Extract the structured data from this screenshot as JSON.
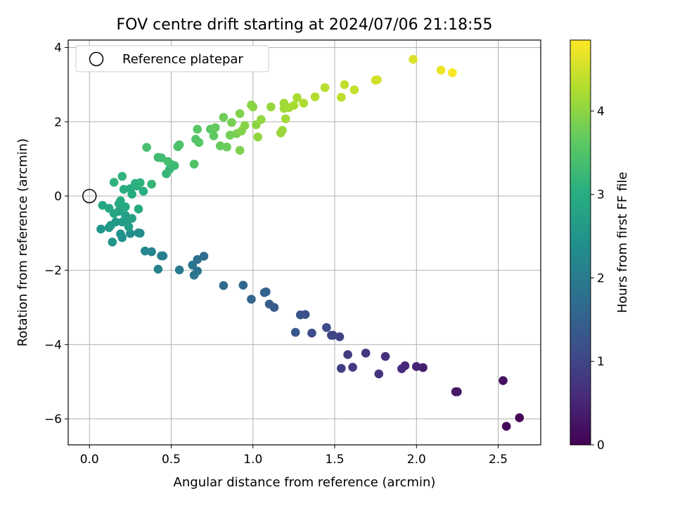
{
  "chart_data": {
    "type": "scatter",
    "title": "FOV centre drift starting at 2024/07/06 21:18:55",
    "xlabel": "Angular distance from reference (arcmin)",
    "ylabel": "Rotation from reference (arcmin)",
    "xlim": [
      -0.13,
      2.76
    ],
    "ylim": [
      -6.7,
      4.2
    ],
    "xticks": [
      0.0,
      0.5,
      1.0,
      1.5,
      2.0,
      2.5
    ],
    "xtick_labels": [
      "0.0",
      "0.5",
      "1.0",
      "1.5",
      "2.0",
      "2.5"
    ],
    "yticks": [
      -6,
      -4,
      -2,
      0,
      2,
      4
    ],
    "ytick_labels": [
      "−6",
      "−4",
      "−2",
      "0",
      "2",
      "4"
    ],
    "grid": true,
    "legend": {
      "position": "top-left",
      "entries": [
        {
          "label": "Reference platepar",
          "marker": "open-circle"
        }
      ]
    },
    "reference_point": {
      "x": 0.0,
      "y": 0.0
    },
    "colorbar": {
      "label": "Hours from first FF file",
      "range": [
        0,
        4.85
      ],
      "ticks": [
        0,
        1,
        2,
        3,
        4
      ],
      "tick_labels": [
        "0",
        "1",
        "2",
        "3",
        "4"
      ],
      "colormap": "viridis"
    },
    "points": [
      {
        "x": 2.63,
        "y": -5.97,
        "c": 0.05
      },
      {
        "x": 2.55,
        "y": -6.2,
        "c": 0.12
      },
      {
        "x": 2.53,
        "y": -4.97,
        "c": 0.2
      },
      {
        "x": 2.25,
        "y": -5.27,
        "c": 0.28
      },
      {
        "x": 2.24,
        "y": -5.27,
        "c": 0.33
      },
      {
        "x": 2.04,
        "y": -4.62,
        "c": 0.42
      },
      {
        "x": 2.0,
        "y": -4.59,
        "c": 0.48
      },
      {
        "x": 1.93,
        "y": -4.57,
        "c": 0.55
      },
      {
        "x": 1.91,
        "y": -4.65,
        "c": 0.6
      },
      {
        "x": 1.81,
        "y": -4.32,
        "c": 0.66
      },
      {
        "x": 1.77,
        "y": -4.79,
        "c": 0.7
      },
      {
        "x": 1.69,
        "y": -4.23,
        "c": 0.76
      },
      {
        "x": 1.61,
        "y": -4.61,
        "c": 0.8
      },
      {
        "x": 1.58,
        "y": -4.27,
        "c": 0.86
      },
      {
        "x": 1.54,
        "y": -4.64,
        "c": 0.9
      },
      {
        "x": 1.53,
        "y": -3.79,
        "c": 0.95
      },
      {
        "x": 1.49,
        "y": -3.75,
        "c": 1.0
      },
      {
        "x": 1.48,
        "y": -3.75,
        "c": 1.05
      },
      {
        "x": 1.45,
        "y": -3.54,
        "c": 1.1
      },
      {
        "x": 1.36,
        "y": -3.69,
        "c": 1.15
      },
      {
        "x": 1.32,
        "y": -3.19,
        "c": 1.2
      },
      {
        "x": 1.29,
        "y": -3.2,
        "c": 1.25
      },
      {
        "x": 1.26,
        "y": -3.67,
        "c": 1.3
      },
      {
        "x": 1.13,
        "y": -3.0,
        "c": 1.36
      },
      {
        "x": 1.1,
        "y": -2.91,
        "c": 1.42
      },
      {
        "x": 1.08,
        "y": -2.58,
        "c": 1.47
      },
      {
        "x": 1.07,
        "y": -2.6,
        "c": 1.52
      },
      {
        "x": 0.99,
        "y": -2.78,
        "c": 1.57
      },
      {
        "x": 0.94,
        "y": -2.4,
        "c": 1.62
      },
      {
        "x": 0.82,
        "y": -2.41,
        "c": 1.68
      },
      {
        "x": 0.7,
        "y": -1.62,
        "c": 1.73
      },
      {
        "x": 0.66,
        "y": -1.71,
        "c": 1.78
      },
      {
        "x": 0.66,
        "y": -2.02,
        "c": 1.83
      },
      {
        "x": 0.64,
        "y": -2.13,
        "c": 1.88
      },
      {
        "x": 0.63,
        "y": -1.86,
        "c": 1.93
      },
      {
        "x": 0.55,
        "y": -1.99,
        "c": 1.98
      },
      {
        "x": 0.45,
        "y": -1.61,
        "c": 2.03
      },
      {
        "x": 0.44,
        "y": -1.61,
        "c": 2.08
      },
      {
        "x": 0.42,
        "y": -1.97,
        "c": 2.13
      },
      {
        "x": 0.38,
        "y": -1.5,
        "c": 2.18
      },
      {
        "x": 0.34,
        "y": -1.48,
        "c": 2.23
      },
      {
        "x": 0.31,
        "y": -1.0,
        "c": 2.28
      },
      {
        "x": 0.3,
        "y": -0.99,
        "c": 2.32
      },
      {
        "x": 0.25,
        "y": -1.01,
        "c": 2.37
      },
      {
        "x": 0.2,
        "y": -1.12,
        "c": 2.41
      },
      {
        "x": 0.19,
        "y": -1.02,
        "c": 2.45
      },
      {
        "x": 0.14,
        "y": -1.24,
        "c": 2.49
      },
      {
        "x": 0.07,
        "y": -0.89,
        "c": 2.53
      },
      {
        "x": 0.13,
        "y": -0.79,
        "c": 2.56
      },
      {
        "x": 0.12,
        "y": -0.85,
        "c": 2.59
      },
      {
        "x": 0.16,
        "y": -0.7,
        "c": 2.62
      },
      {
        "x": 0.2,
        "y": -0.7,
        "c": 2.65
      },
      {
        "x": 0.24,
        "y": -0.83,
        "c": 2.68
      },
      {
        "x": 0.23,
        "y": -0.71,
        "c": 2.71
      },
      {
        "x": 0.22,
        "y": -0.52,
        "c": 2.74
      },
      {
        "x": 0.26,
        "y": -0.6,
        "c": 2.77
      },
      {
        "x": 0.18,
        "y": -0.41,
        "c": 2.8
      },
      {
        "x": 0.15,
        "y": -0.47,
        "c": 2.83
      },
      {
        "x": 0.12,
        "y": -0.33,
        "c": 2.86
      },
      {
        "x": 0.08,
        "y": -0.25,
        "c": 2.88
      },
      {
        "x": 0.18,
        "y": -0.21,
        "c": 2.9
      },
      {
        "x": 0.22,
        "y": -0.29,
        "c": 2.92
      },
      {
        "x": 0.19,
        "y": -0.13,
        "c": 2.94
      },
      {
        "x": 0.3,
        "y": -0.35,
        "c": 2.96
      },
      {
        "x": 0.26,
        "y": 0.05,
        "c": 2.98
      },
      {
        "x": 0.21,
        "y": 0.18,
        "c": 3.0
      },
      {
        "x": 0.25,
        "y": 0.2,
        "c": 3.02
      },
      {
        "x": 0.33,
        "y": 0.13,
        "c": 3.04
      },
      {
        "x": 0.29,
        "y": 0.27,
        "c": 3.06
      },
      {
        "x": 0.28,
        "y": 0.34,
        "c": 3.08
      },
      {
        "x": 0.31,
        "y": 0.36,
        "c": 3.1
      },
      {
        "x": 0.15,
        "y": 0.37,
        "c": 3.12
      },
      {
        "x": 0.2,
        "y": 0.53,
        "c": 3.14
      },
      {
        "x": 0.38,
        "y": 0.32,
        "c": 3.16
      },
      {
        "x": 0.47,
        "y": 0.6,
        "c": 3.19
      },
      {
        "x": 0.49,
        "y": 0.72,
        "c": 3.22
      },
      {
        "x": 0.5,
        "y": 0.85,
        "c": 3.25
      },
      {
        "x": 0.52,
        "y": 0.82,
        "c": 3.28
      },
      {
        "x": 0.42,
        "y": 1.04,
        "c": 3.31
      },
      {
        "x": 0.44,
        "y": 1.03,
        "c": 3.34
      },
      {
        "x": 0.48,
        "y": 0.93,
        "c": 3.37
      },
      {
        "x": 0.35,
        "y": 1.31,
        "c": 3.4
      },
      {
        "x": 0.54,
        "y": 1.33,
        "c": 3.43
      },
      {
        "x": 0.55,
        "y": 1.38,
        "c": 3.46
      },
      {
        "x": 0.64,
        "y": 0.86,
        "c": 3.49
      },
      {
        "x": 0.65,
        "y": 1.53,
        "c": 3.52
      },
      {
        "x": 0.67,
        "y": 1.44,
        "c": 3.55
      },
      {
        "x": 0.66,
        "y": 1.8,
        "c": 3.58
      },
      {
        "x": 0.74,
        "y": 1.8,
        "c": 3.61
      },
      {
        "x": 0.76,
        "y": 1.62,
        "c": 3.64
      },
      {
        "x": 0.77,
        "y": 1.84,
        "c": 3.67
      },
      {
        "x": 0.8,
        "y": 1.35,
        "c": 3.7
      },
      {
        "x": 0.84,
        "y": 1.32,
        "c": 3.73
      },
      {
        "x": 0.82,
        "y": 2.12,
        "c": 3.76
      },
      {
        "x": 0.86,
        "y": 1.64,
        "c": 3.79
      },
      {
        "x": 0.87,
        "y": 1.98,
        "c": 3.82
      },
      {
        "x": 0.9,
        "y": 1.68,
        "c": 3.85
      },
      {
        "x": 0.92,
        "y": 1.23,
        "c": 3.88
      },
      {
        "x": 0.92,
        "y": 2.22,
        "c": 3.9
      },
      {
        "x": 0.93,
        "y": 1.75,
        "c": 3.92
      },
      {
        "x": 0.95,
        "y": 1.9,
        "c": 3.94
      },
      {
        "x": 0.99,
        "y": 2.45,
        "c": 3.96
      },
      {
        "x": 1.0,
        "y": 2.4,
        "c": 3.98
      },
      {
        "x": 1.02,
        "y": 1.92,
        "c": 4.0
      },
      {
        "x": 1.03,
        "y": 1.59,
        "c": 4.02
      },
      {
        "x": 1.05,
        "y": 2.06,
        "c": 4.04
      },
      {
        "x": 1.11,
        "y": 2.4,
        "c": 4.06
      },
      {
        "x": 1.17,
        "y": 1.7,
        "c": 4.08
      },
      {
        "x": 1.18,
        "y": 1.77,
        "c": 4.1
      },
      {
        "x": 1.19,
        "y": 2.36,
        "c": 4.12
      },
      {
        "x": 1.19,
        "y": 2.5,
        "c": 4.14
      },
      {
        "x": 1.2,
        "y": 2.08,
        "c": 4.16
      },
      {
        "x": 1.22,
        "y": 2.38,
        "c": 4.18
      },
      {
        "x": 1.25,
        "y": 2.44,
        "c": 4.2
      },
      {
        "x": 1.27,
        "y": 2.65,
        "c": 4.23
      },
      {
        "x": 1.31,
        "y": 2.5,
        "c": 4.26
      },
      {
        "x": 1.38,
        "y": 2.67,
        "c": 4.29
      },
      {
        "x": 1.44,
        "y": 2.92,
        "c": 4.32
      },
      {
        "x": 1.54,
        "y": 2.66,
        "c": 4.36
      },
      {
        "x": 1.56,
        "y": 3.0,
        "c": 4.39
      },
      {
        "x": 1.62,
        "y": 2.86,
        "c": 4.42
      },
      {
        "x": 1.75,
        "y": 3.12,
        "c": 4.46
      },
      {
        "x": 1.76,
        "y": 3.13,
        "c": 4.5
      },
      {
        "x": 1.98,
        "y": 3.68,
        "c": 4.6
      },
      {
        "x": 2.15,
        "y": 3.39,
        "c": 4.72
      },
      {
        "x": 2.22,
        "y": 3.32,
        "c": 4.82
      }
    ]
  }
}
